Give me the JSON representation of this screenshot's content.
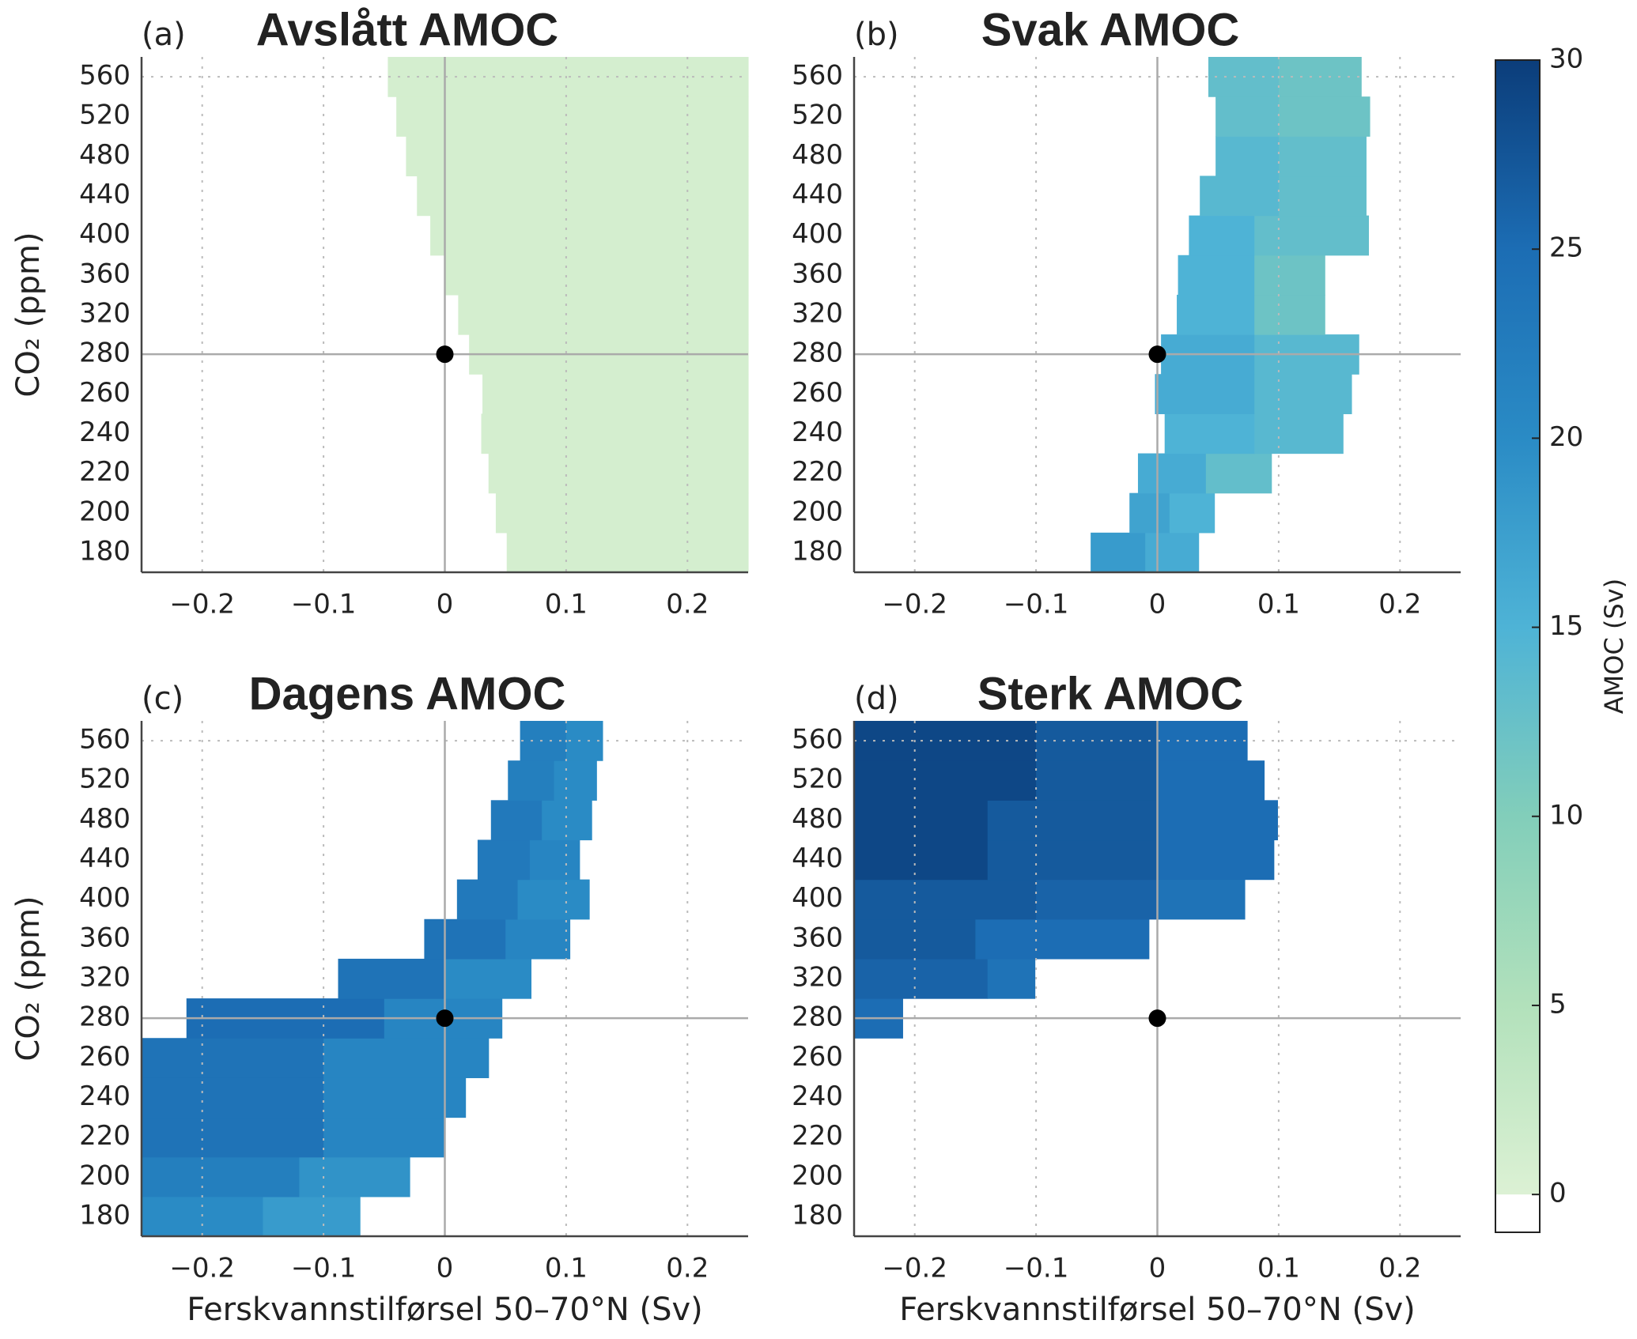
{
  "chart_data": [
    {
      "type": "heatmap",
      "panel_label": "(a)",
      "title": "Avslått AMOC",
      "ylabel": "CO₂ (ppm)",
      "categories": [
        180,
        200,
        220,
        240,
        260,
        280,
        320,
        360,
        400,
        440,
        480,
        520,
        560
      ],
      "xlim": [
        -0.25,
        0.25
      ],
      "xticks": [
        {
          "value": -0.2,
          "label": "−0.2"
        },
        {
          "value": -0.1,
          "label": "−0.1"
        },
        0,
        0.1,
        0.2
      ],
      "ygrid": [
        560
      ],
      "marker": {
        "x": 0,
        "y": 280
      },
      "rows": [
        [
          [
            0.051,
            0.25,
            1
          ]
        ],
        [
          [
            0.042,
            0.25,
            1
          ]
        ],
        [
          [
            0.036,
            0.25,
            1
          ]
        ],
        [
          [
            0.03,
            0.25,
            1
          ]
        ],
        [
          [
            0.031,
            0.25,
            1
          ]
        ],
        [
          [
            0.02,
            0.25,
            1
          ]
        ],
        [
          [
            0.011,
            0.25,
            1
          ]
        ],
        [
          [
            0,
            0.25,
            1
          ]
        ],
        [
          [
            -0.012,
            0.25,
            1
          ]
        ],
        [
          [
            -0.023,
            0.25,
            1
          ]
        ],
        [
          [
            -0.032,
            0.25,
            1
          ]
        ],
        [
          [
            -0.04,
            0.25,
            1
          ]
        ],
        [
          [
            -0.047,
            0.25,
            1
          ]
        ]
      ]
    },
    {
      "type": "heatmap",
      "panel_label": "(b)",
      "title": "Svak AMOC",
      "categories": [
        180,
        200,
        220,
        240,
        260,
        280,
        320,
        360,
        400,
        440,
        480,
        520,
        560
      ],
      "xlim": [
        -0.25,
        0.25
      ],
      "xticks": [
        {
          "value": -0.2,
          "label": "−0.2"
        },
        {
          "value": -0.1,
          "label": "−0.1"
        },
        0,
        0.1,
        0.2
      ],
      "ygrid": [
        560
      ],
      "marker": {
        "x": 0,
        "y": 280
      },
      "rows": [
        [
          [
            -0.055,
            -0.01,
            18
          ],
          [
            -0.01,
            0.034,
            16
          ]
        ],
        [
          [
            -0.023,
            0.01,
            17
          ],
          [
            0.01,
            0.047,
            15
          ]
        ],
        [
          [
            -0.016,
            0.04,
            16
          ],
          [
            0.04,
            0.094,
            13
          ]
        ],
        [
          [
            0.006,
            0.08,
            15
          ],
          [
            0.08,
            0.153,
            14
          ]
        ],
        [
          [
            -0.002,
            0.08,
            16
          ],
          [
            0.08,
            0.16,
            14
          ]
        ],
        [
          [
            0.003,
            0.08,
            16
          ],
          [
            0.08,
            0.166,
            14
          ]
        ],
        [
          [
            0.016,
            0.08,
            15
          ],
          [
            0.08,
            0.138,
            12
          ]
        ],
        [
          [
            0.017,
            0.08,
            15
          ],
          [
            0.08,
            0.138,
            12
          ]
        ],
        [
          [
            0.026,
            0.08,
            15
          ],
          [
            0.08,
            0.174,
            13
          ]
        ],
        [
          [
            0.035,
            0.1,
            14
          ],
          [
            0.1,
            0.172,
            13
          ]
        ],
        [
          [
            0.048,
            0.1,
            14
          ],
          [
            0.1,
            0.172,
            13
          ]
        ],
        [
          [
            0.048,
            0.1,
            13
          ],
          [
            0.1,
            0.175,
            12
          ]
        ],
        [
          [
            0.042,
            0.1,
            13
          ],
          [
            0.1,
            0.168,
            12
          ]
        ]
      ]
    },
    {
      "type": "heatmap",
      "panel_label": "(c)",
      "title": "Dagens AMOC",
      "ylabel": "CO₂ (ppm)",
      "xlabel": "Ferskvannstilførsel 50–70°N (Sv)",
      "categories": [
        180,
        200,
        220,
        240,
        260,
        280,
        320,
        360,
        400,
        440,
        480,
        520,
        560
      ],
      "xlim": [
        -0.25,
        0.25
      ],
      "xticks": [
        {
          "value": -0.2,
          "label": "−0.2"
        },
        {
          "value": -0.1,
          "label": "−0.1"
        },
        0,
        0.1,
        0.2
      ],
      "ygrid": [
        560
      ],
      "marker": {
        "x": 0,
        "y": 280
      },
      "rows": [
        [
          [
            -0.25,
            -0.15,
            20
          ],
          [
            -0.15,
            -0.07,
            18
          ]
        ],
        [
          [
            -0.25,
            -0.12,
            22
          ],
          [
            -0.12,
            -0.029,
            19
          ]
        ],
        [
          [
            -0.25,
            -0.1,
            24
          ],
          [
            -0.1,
            0.0,
            21
          ]
        ],
        [
          [
            -0.25,
            -0.1,
            24
          ],
          [
            -0.1,
            0.017,
            21
          ]
        ],
        [
          [
            -0.25,
            -0.1,
            24
          ],
          [
            -0.1,
            0.036,
            21
          ]
        ],
        [
          [
            -0.213,
            -0.05,
            25
          ],
          [
            -0.05,
            0.047,
            21
          ]
        ],
        [
          [
            -0.088,
            0.0,
            24
          ],
          [
            0.0,
            0.071,
            20
          ]
        ],
        [
          [
            -0.017,
            0.05,
            24
          ],
          [
            0.05,
            0.103,
            21
          ]
        ],
        [
          [
            0.01,
            0.06,
            23
          ],
          [
            0.06,
            0.119,
            20
          ]
        ],
        [
          [
            0.027,
            0.07,
            23
          ],
          [
            0.07,
            0.111,
            21
          ]
        ],
        [
          [
            0.038,
            0.08,
            23
          ],
          [
            0.08,
            0.121,
            20
          ]
        ],
        [
          [
            0.052,
            0.09,
            22
          ],
          [
            0.09,
            0.125,
            20
          ]
        ],
        [
          [
            0.062,
            0.1,
            22
          ],
          [
            0.1,
            0.13,
            20
          ]
        ]
      ]
    },
    {
      "type": "heatmap",
      "panel_label": "(d)",
      "title": "Sterk AMOC",
      "xlabel": "Ferskvannstilførsel 50–70°N (Sv)",
      "categories": [
        180,
        200,
        220,
        240,
        260,
        280,
        320,
        360,
        400,
        440,
        480,
        520,
        560
      ],
      "xlim": [
        -0.25,
        0.25
      ],
      "xticks": [
        {
          "value": -0.2,
          "label": "−0.2"
        },
        {
          "value": -0.1,
          "label": "−0.1"
        },
        0,
        0.1,
        0.2
      ],
      "ygrid": [
        560
      ],
      "marker": {
        "x": 0,
        "y": 280
      },
      "rows": [
        [],
        [],
        [],
        [],
        [],
        [
          [
            -0.25,
            -0.21,
            25
          ]
        ],
        [
          [
            -0.25,
            -0.14,
            26
          ],
          [
            -0.14,
            -0.101,
            24
          ]
        ],
        [
          [
            -0.25,
            -0.15,
            27
          ],
          [
            -0.15,
            -0.007,
            25
          ]
        ],
        [
          [
            -0.25,
            -0.1,
            27
          ],
          [
            -0.1,
            0.0,
            26
          ],
          [
            0.0,
            0.072,
            24
          ]
        ],
        [
          [
            -0.25,
            -0.14,
            29
          ],
          [
            -0.14,
            0.0,
            27
          ],
          [
            0.0,
            0.096,
            25
          ]
        ],
        [
          [
            -0.25,
            -0.14,
            29
          ],
          [
            -0.14,
            0.0,
            27
          ],
          [
            0.0,
            0.099,
            25
          ]
        ],
        [
          [
            -0.25,
            -0.1,
            29
          ],
          [
            -0.1,
            0.0,
            27
          ],
          [
            0.0,
            0.088,
            25
          ]
        ],
        [
          [
            -0.25,
            -0.1,
            29
          ],
          [
            -0.1,
            0.0,
            27
          ],
          [
            0.0,
            0.074,
            25
          ]
        ]
      ]
    }
  ],
  "colorbar": {
    "label": "AMOC (Sv)",
    "lim": [
      -1,
      30
    ],
    "ticks": [
      0,
      5,
      10,
      15,
      20,
      25,
      30
    ],
    "colors": [
      "#dcf1d4",
      "#b2e1bb",
      "#82ceba",
      "#4eb3d6",
      "#2a8bc5",
      "#1c6db4",
      "#0b3d7a"
    ],
    "below_color": "#ffffff"
  }
}
